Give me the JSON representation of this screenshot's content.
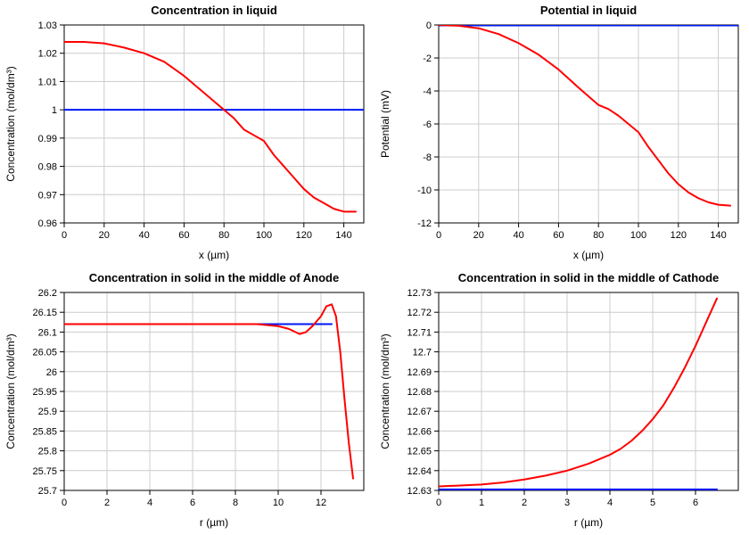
{
  "global": {
    "background_color": "#ffffff",
    "grid_color": "#cccccc",
    "axis_color": "#000000",
    "series_colors": {
      "blue": "#0018f9",
      "red": "#ff0000"
    },
    "title_fontsize": 13,
    "title_fontweight": "bold",
    "axis_label_fontsize": 12,
    "tick_fontsize": 11,
    "line_width": 2
  },
  "panels": [
    {
      "id": "topleft",
      "title": "Concentration in liquid",
      "xlabel": "x (µm)",
      "ylabel": "Concentration (mol/dm³)",
      "xlim": [
        0,
        150
      ],
      "ylim": [
        0.96,
        1.03
      ],
      "xticks": [
        0,
        20,
        40,
        60,
        80,
        100,
        120,
        140
      ],
      "yticks": [
        0.96,
        0.97,
        0.98,
        0.99,
        1,
        1.01,
        1.02,
        1.03
      ],
      "series": [
        {
          "color_key": "blue",
          "x": [
            0,
            150
          ],
          "y": [
            1.0,
            1.0
          ]
        },
        {
          "color_key": "red",
          "x": [
            0,
            10,
            20,
            30,
            40,
            50,
            60,
            70,
            80,
            85,
            90,
            95,
            100,
            105,
            110,
            115,
            120,
            125,
            130,
            135,
            140,
            146
          ],
          "y": [
            1.024,
            1.024,
            1.0235,
            1.022,
            1.02,
            1.017,
            1.012,
            1.006,
            1.0,
            0.997,
            0.993,
            0.991,
            0.989,
            0.984,
            0.98,
            0.976,
            0.972,
            0.969,
            0.967,
            0.965,
            0.964,
            0.964
          ]
        }
      ]
    },
    {
      "id": "topright",
      "title": "Potential in liquid",
      "xlabel": "x (µm)",
      "ylabel": "Potential (mV)",
      "xlim": [
        0,
        150
      ],
      "ylim": [
        -12,
        0
      ],
      "xticks": [
        0,
        20,
        40,
        60,
        80,
        100,
        120,
        140
      ],
      "yticks": [
        -12,
        -10,
        -8,
        -6,
        -4,
        -2,
        0
      ],
      "series": [
        {
          "color_key": "blue",
          "x": [
            0,
            150
          ],
          "y": [
            -0.03,
            -0.03
          ]
        },
        {
          "color_key": "red",
          "x": [
            0,
            10,
            20,
            30,
            40,
            50,
            60,
            70,
            80,
            85,
            90,
            95,
            100,
            105,
            110,
            115,
            120,
            125,
            130,
            135,
            140,
            146
          ],
          "y": [
            0,
            -0.05,
            -0.2,
            -0.55,
            -1.1,
            -1.8,
            -2.7,
            -3.8,
            -4.85,
            -5.1,
            -5.5,
            -6.0,
            -6.5,
            -7.4,
            -8.2,
            -9.0,
            -9.65,
            -10.15,
            -10.5,
            -10.75,
            -10.9,
            -10.95
          ]
        }
      ]
    },
    {
      "id": "bottomleft",
      "title": "Concentration in solid in the middle of Anode",
      "xlabel": "r (µm)",
      "ylabel": "Concentration (mol/dm³)",
      "xlim": [
        0,
        14
      ],
      "ylim": [
        25.7,
        26.2
      ],
      "xticks": [
        0,
        2,
        4,
        6,
        8,
        10,
        12
      ],
      "yticks": [
        25.7,
        25.75,
        25.8,
        25.85,
        25.9,
        25.95,
        26,
        26.05,
        26.1,
        26.15,
        26.2
      ],
      "series": [
        {
          "color_key": "blue",
          "x": [
            0,
            12.5
          ],
          "y": [
            26.12,
            26.12
          ]
        },
        {
          "color_key": "red",
          "x": [
            0,
            2,
            4,
            6,
            8,
            9,
            10,
            10.5,
            11,
            11.3,
            11.6,
            12,
            12.25,
            12.5,
            12.7,
            12.9,
            13.1,
            13.3,
            13.5
          ],
          "y": [
            26.12,
            26.12,
            26.12,
            26.12,
            26.12,
            26.12,
            26.115,
            26.108,
            26.095,
            26.1,
            26.115,
            26.14,
            26.165,
            26.17,
            26.14,
            26.05,
            25.93,
            25.82,
            25.73
          ]
        }
      ]
    },
    {
      "id": "bottomright",
      "title": "Concentration in solid in the middle of Cathode",
      "xlabel": "r (µm)",
      "ylabel": "Concentration (mol/dm³)",
      "xlim": [
        0,
        7
      ],
      "ylim": [
        12.63,
        12.73
      ],
      "xticks": [
        0,
        1,
        2,
        3,
        4,
        5,
        6
      ],
      "yticks": [
        12.63,
        12.64,
        12.65,
        12.66,
        12.67,
        12.68,
        12.69,
        12.7,
        12.71,
        12.72,
        12.73
      ],
      "series": [
        {
          "color_key": "blue",
          "x": [
            0,
            6.5
          ],
          "y": [
            12.6305,
            12.6305
          ]
        },
        {
          "color_key": "red",
          "x": [
            0,
            0.5,
            1,
            1.5,
            2,
            2.5,
            3,
            3.5,
            4,
            4.25,
            4.5,
            4.75,
            5,
            5.25,
            5.5,
            5.75,
            6,
            6.25,
            6.5
          ],
          "y": [
            12.632,
            12.6325,
            12.633,
            12.634,
            12.6355,
            12.6375,
            12.64,
            12.6435,
            12.648,
            12.651,
            12.655,
            12.66,
            12.666,
            12.673,
            12.682,
            12.692,
            12.703,
            12.715,
            12.727
          ]
        }
      ]
    }
  ]
}
